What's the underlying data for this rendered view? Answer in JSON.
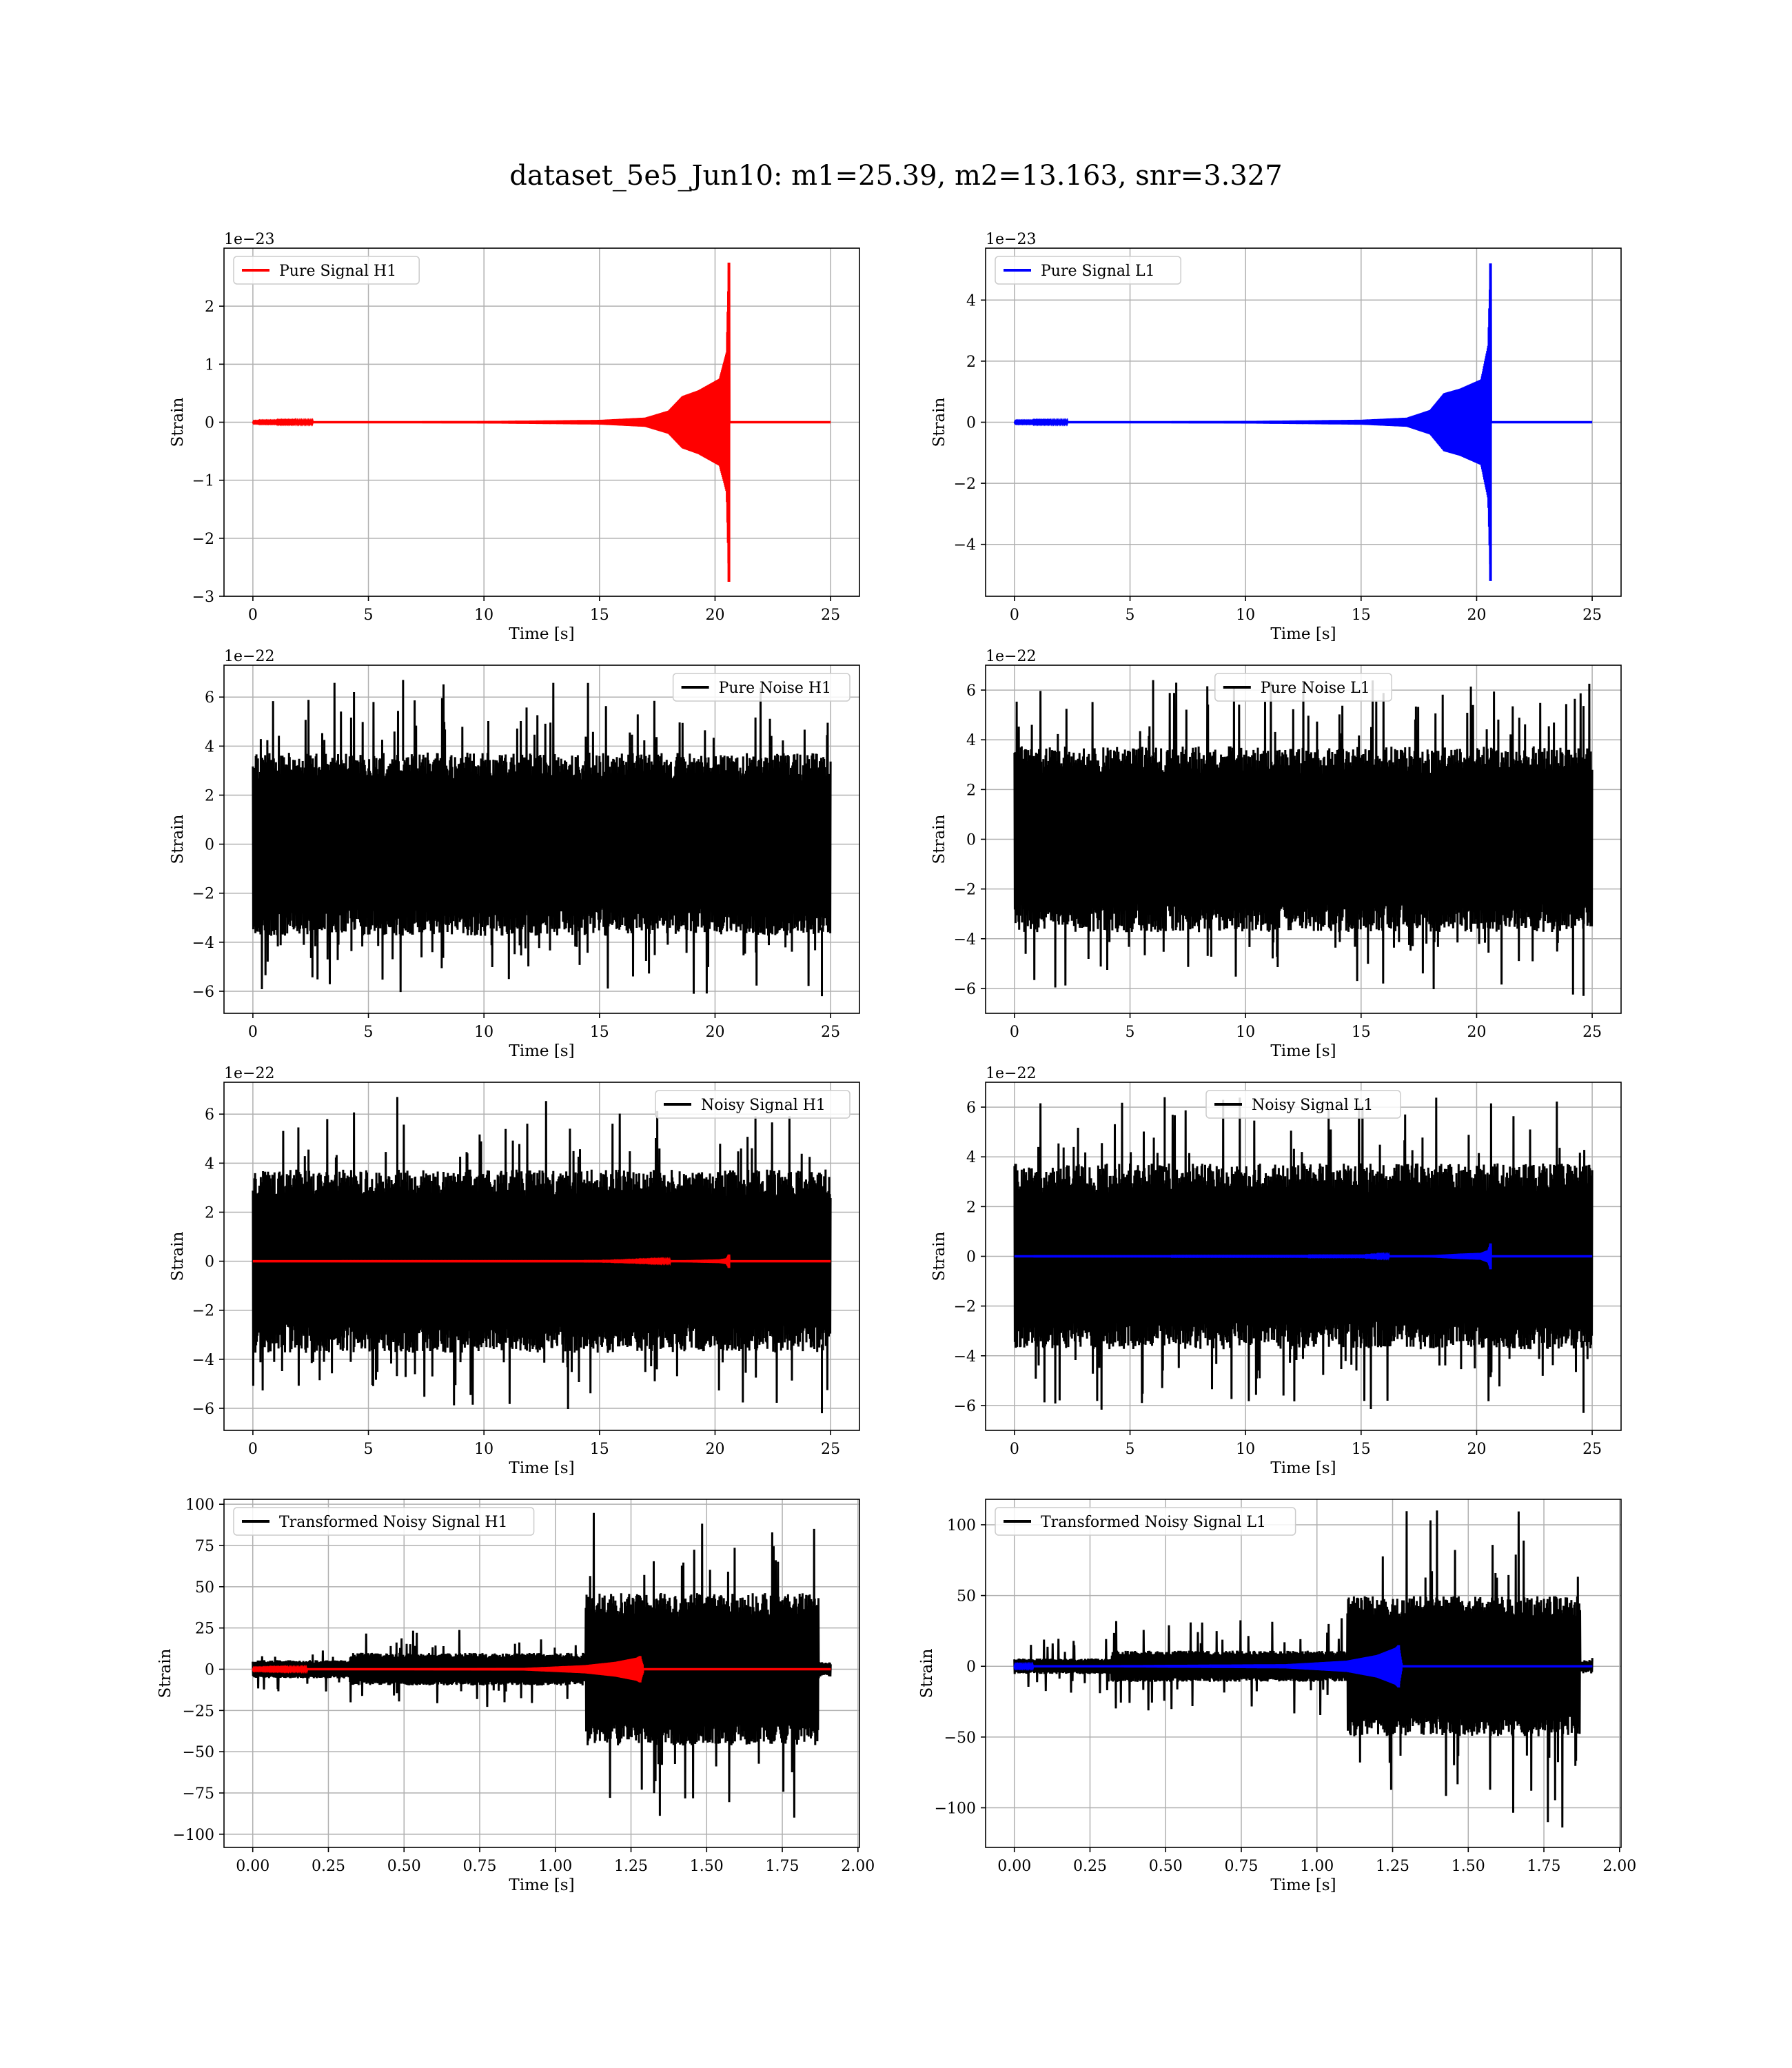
{
  "title": "dataset_5e5_Jun10: m1=25.39, m2=13.163, snr=3.327",
  "colors": {
    "signal_h1": "#ff0000",
    "signal_l1": "#0000ff",
    "noise": "#000000",
    "grid": "#b0b0b0",
    "axes": "#000000"
  },
  "chart_data": [
    {
      "id": "pure-signal-h1",
      "type": "line",
      "legend": [
        "Pure Signal H1"
      ],
      "legend_loc": "upper left",
      "xlabel": "Time [s]",
      "ylabel": "Strain",
      "offset": "1e−23",
      "xlim": [
        -1.25,
        26.25
      ],
      "ylim": [
        -3,
        3
      ],
      "xticks": [
        0,
        5,
        10,
        15,
        20,
        25
      ],
      "yticks": [
        -3,
        -2,
        -1,
        0,
        1,
        2
      ],
      "xtick_labels": [
        "0",
        "5",
        "10",
        "15",
        "20",
        "25"
      ],
      "ytick_labels": [
        "−3",
        "−2",
        "−1",
        "0",
        "1",
        "2"
      ],
      "grid": true,
      "series": [
        {
          "kind": "chirp",
          "color": "#ff0000",
          "x_start": 0,
          "x_end": 25,
          "merger": 20.6,
          "envelope": [
            [
              0,
              0.005
            ],
            [
              10,
              0.02
            ],
            [
              15,
              0.04
            ],
            [
              17,
              0.08
            ],
            [
              18,
              0.2
            ],
            [
              18.6,
              0.45
            ],
            [
              19.3,
              0.55
            ],
            [
              20.2,
              0.75
            ],
            [
              20.5,
              1.2
            ],
            [
              20.6,
              2.75
            ],
            [
              20.62,
              2.7
            ]
          ]
        }
      ]
    },
    {
      "id": "pure-signal-l1",
      "type": "line",
      "legend": [
        "Pure Signal L1"
      ],
      "legend_loc": "upper left",
      "xlabel": "Time [s]",
      "ylabel": "Strain",
      "offset": "1e−23",
      "xlim": [
        -1.25,
        26.25
      ],
      "ylim": [
        -5.7,
        5.7
      ],
      "xticks": [
        0,
        5,
        10,
        15,
        20,
        25
      ],
      "yticks": [
        -4,
        -2,
        0,
        2,
        4
      ],
      "xtick_labels": [
        "0",
        "5",
        "10",
        "15",
        "20",
        "25"
      ],
      "ytick_labels": [
        "−4",
        "−2",
        "0",
        "2",
        "4"
      ],
      "grid": true,
      "series": [
        {
          "kind": "chirp",
          "color": "#0000ff",
          "x_start": 0,
          "x_end": 25,
          "merger": 20.6,
          "envelope": [
            [
              0,
              0.01
            ],
            [
              10,
              0.04
            ],
            [
              15,
              0.08
            ],
            [
              17,
              0.15
            ],
            [
              18,
              0.4
            ],
            [
              18.6,
              0.95
            ],
            [
              19.3,
              1.1
            ],
            [
              20.2,
              1.4
            ],
            [
              20.5,
              2.5
            ],
            [
              20.6,
              5.2
            ],
            [
              20.62,
              5.1
            ]
          ]
        }
      ]
    },
    {
      "id": "pure-noise-h1",
      "type": "line",
      "legend": [
        "Pure Noise H1"
      ],
      "legend_loc": "upper right",
      "xlabel": "Time [s]",
      "ylabel": "Strain",
      "offset": "1e−22",
      "xlim": [
        -1.25,
        26.25
      ],
      "ylim": [
        -6.9,
        7.3
      ],
      "xticks": [
        0,
        5,
        10,
        15,
        20,
        25
      ],
      "yticks": [
        -6,
        -4,
        -2,
        0,
        2,
        4,
        6
      ],
      "xtick_labels": [
        "0",
        "5",
        "10",
        "15",
        "20",
        "25"
      ],
      "ytick_labels": [
        "−6",
        "−4",
        "−2",
        "0",
        "2",
        "4",
        "6"
      ],
      "grid": true,
      "series": [
        {
          "kind": "noise",
          "color": "#000000",
          "x_start": 0,
          "x_end": 25,
          "band": 3.4,
          "peak_max": 6.7,
          "peak_min": -6.2
        }
      ]
    },
    {
      "id": "pure-noise-l1",
      "type": "line",
      "legend": [
        "Pure Noise L1"
      ],
      "legend_loc": "upper center",
      "xlabel": "Time [s]",
      "ylabel": "Strain",
      "offset": "1e−22",
      "xlim": [
        -1.25,
        26.25
      ],
      "ylim": [
        -7,
        7
      ],
      "xticks": [
        0,
        5,
        10,
        15,
        20,
        25
      ],
      "yticks": [
        -6,
        -4,
        -2,
        0,
        2,
        4,
        6
      ],
      "xtick_labels": [
        "0",
        "5",
        "10",
        "15",
        "20",
        "25"
      ],
      "ytick_labels": [
        "−6",
        "−4",
        "−2",
        "0",
        "2",
        "4",
        "6"
      ],
      "grid": true,
      "series": [
        {
          "kind": "noise",
          "color": "#000000",
          "x_start": 0,
          "x_end": 25,
          "band": 3.4,
          "peak_max": 6.4,
          "peak_min": -6.3
        }
      ]
    },
    {
      "id": "noisy-signal-h1",
      "type": "line",
      "legend": [
        "Noisy Signal H1"
      ],
      "legend_loc": "upper right",
      "xlabel": "Time [s]",
      "ylabel": "Strain",
      "offset": "1e−22",
      "xlim": [
        -1.25,
        26.25
      ],
      "ylim": [
        -6.9,
        7.3
      ],
      "xticks": [
        0,
        5,
        10,
        15,
        20,
        25
      ],
      "yticks": [
        -6,
        -4,
        -2,
        0,
        2,
        4,
        6
      ],
      "xtick_labels": [
        "0",
        "5",
        "10",
        "15",
        "20",
        "25"
      ],
      "ytick_labels": [
        "−6",
        "−4",
        "−2",
        "0",
        "2",
        "4",
        "6"
      ],
      "grid": true,
      "series": [
        {
          "kind": "noise",
          "color": "#000000",
          "x_start": 0,
          "x_end": 25,
          "band": 3.4,
          "peak_max": 6.7,
          "peak_min": -6.2
        },
        {
          "kind": "chirp",
          "color": "#ff0000",
          "x_start": 0,
          "x_end": 25,
          "merger": 20.6,
          "envelope": [
            [
              0,
              0.001
            ],
            [
              15,
              0.004
            ],
            [
              18,
              0.02
            ],
            [
              19.3,
              0.055
            ],
            [
              20.2,
              0.075
            ],
            [
              20.5,
              0.12
            ],
            [
              20.6,
              0.275
            ],
            [
              20.62,
              0.27
            ]
          ]
        }
      ]
    },
    {
      "id": "noisy-signal-l1",
      "type": "line",
      "legend": [
        "Noisy Signal L1"
      ],
      "legend_loc": "upper center",
      "xlabel": "Time [s]",
      "ylabel": "Strain",
      "offset": "1e−22",
      "xlim": [
        -1.25,
        26.25
      ],
      "ylim": [
        -7,
        7
      ],
      "xticks": [
        0,
        5,
        10,
        15,
        20,
        25
      ],
      "yticks": [
        -6,
        -4,
        -2,
        0,
        2,
        4,
        6
      ],
      "xtick_labels": [
        "0",
        "5",
        "10",
        "15",
        "20",
        "25"
      ],
      "ytick_labels": [
        "−6",
        "−4",
        "−2",
        "0",
        "2",
        "4",
        "6"
      ],
      "grid": true,
      "series": [
        {
          "kind": "noise",
          "color": "#000000",
          "x_start": 0,
          "x_end": 25,
          "band": 3.4,
          "peak_max": 6.4,
          "peak_min": -6.3
        },
        {
          "kind": "chirp",
          "color": "#0000ff",
          "x_start": 0,
          "x_end": 25,
          "merger": 20.6,
          "envelope": [
            [
              0,
              0.001
            ],
            [
              15,
              0.008
            ],
            [
              18,
              0.04
            ],
            [
              19.3,
              0.11
            ],
            [
              20.2,
              0.14
            ],
            [
              20.5,
              0.25
            ],
            [
              20.6,
              0.52
            ],
            [
              20.62,
              0.51
            ]
          ]
        }
      ]
    },
    {
      "id": "transformed-noisy-signal-h1",
      "type": "line",
      "legend": [
        "Transformed Noisy Signal H1"
      ],
      "legend_loc": "upper left",
      "xlabel": "Time [s]",
      "ylabel": "Strain",
      "offset": "",
      "xlim": [
        -0.095,
        2.005
      ],
      "ylim": [
        -108,
        103
      ],
      "xticks": [
        0,
        0.25,
        0.5,
        0.75,
        1.0,
        1.25,
        1.5,
        1.75,
        2.0
      ],
      "yticks": [
        -100,
        -75,
        -50,
        -25,
        0,
        25,
        50,
        75,
        100
      ],
      "xtick_labels": [
        "0.00",
        "0.25",
        "0.50",
        "0.75",
        "1.00",
        "1.25",
        "1.50",
        "1.75",
        "2.00"
      ],
      "ytick_labels": [
        "−100",
        "−75",
        "−50",
        "−25",
        "0",
        "25",
        "50",
        "75",
        "100"
      ],
      "grid": true,
      "series": [
        {
          "kind": "noise",
          "color": "#000000",
          "x_start": 0,
          "x_end": 1.91,
          "segments": [
            {
              "from": 0,
              "to": 0.32,
              "band": 5,
              "peak": 15
            },
            {
              "from": 0.32,
              "to": 1.1,
              "band": 9,
              "peak": 24
            },
            {
              "from": 1.1,
              "to": 1.87,
              "band": 42,
              "peak": 100
            },
            {
              "from": 1.87,
              "to": 1.91,
              "band": 4,
              "peak": 7
            }
          ]
        },
        {
          "kind": "chirp",
          "color": "#ff0000",
          "x_start": 0,
          "x_end": 1.91,
          "merger": 1.28,
          "envelope": [
            [
              0,
              0.2
            ],
            [
              0.9,
              0.8
            ],
            [
              1.1,
              2.5
            ],
            [
              1.2,
              4.5
            ],
            [
              1.27,
              7
            ],
            [
              1.28,
              8
            ],
            [
              1.29,
              2
            ]
          ]
        }
      ]
    },
    {
      "id": "transformed-noisy-signal-l1",
      "type": "line",
      "legend": [
        "Transformed Noisy Signal L1"
      ],
      "legend_loc": "upper left",
      "xlabel": "Time [s]",
      "ylabel": "Strain",
      "offset": "",
      "xlim": [
        -0.095,
        2.005
      ],
      "ylim": [
        -128,
        118
      ],
      "xticks": [
        0,
        0.25,
        0.5,
        0.75,
        1.0,
        1.25,
        1.5,
        1.75,
        2.0
      ],
      "yticks": [
        -100,
        -50,
        0,
        50,
        100
      ],
      "xtick_labels": [
        "0.00",
        "0.25",
        "0.50",
        "0.75",
        "1.00",
        "1.25",
        "1.50",
        "1.75",
        "2.00"
      ],
      "ytick_labels": [
        "−100",
        "−50",
        "0",
        "50",
        "100"
      ],
      "grid": true,
      "series": [
        {
          "kind": "noise",
          "color": "#000000",
          "x_start": 0,
          "x_end": 1.91,
          "segments": [
            {
              "from": 0,
              "to": 0.32,
              "band": 5,
              "peak": 20
            },
            {
              "from": 0.32,
              "to": 1.1,
              "band": 10,
              "peak": 35
            },
            {
              "from": 1.1,
              "to": 1.87,
              "band": 45,
              "peak": 115
            },
            {
              "from": 1.87,
              "to": 1.91,
              "band": 4,
              "peak": 6
            }
          ]
        },
        {
          "kind": "chirp",
          "color": "#0000ff",
          "x_start": 0,
          "x_end": 1.91,
          "merger": 1.27,
          "envelope": [
            [
              0,
              0.3
            ],
            [
              0.9,
              1.5
            ],
            [
              1.1,
              4
            ],
            [
              1.2,
              8
            ],
            [
              1.26,
              13
            ],
            [
              1.27,
              15
            ],
            [
              1.28,
              2
            ]
          ]
        }
      ]
    }
  ]
}
